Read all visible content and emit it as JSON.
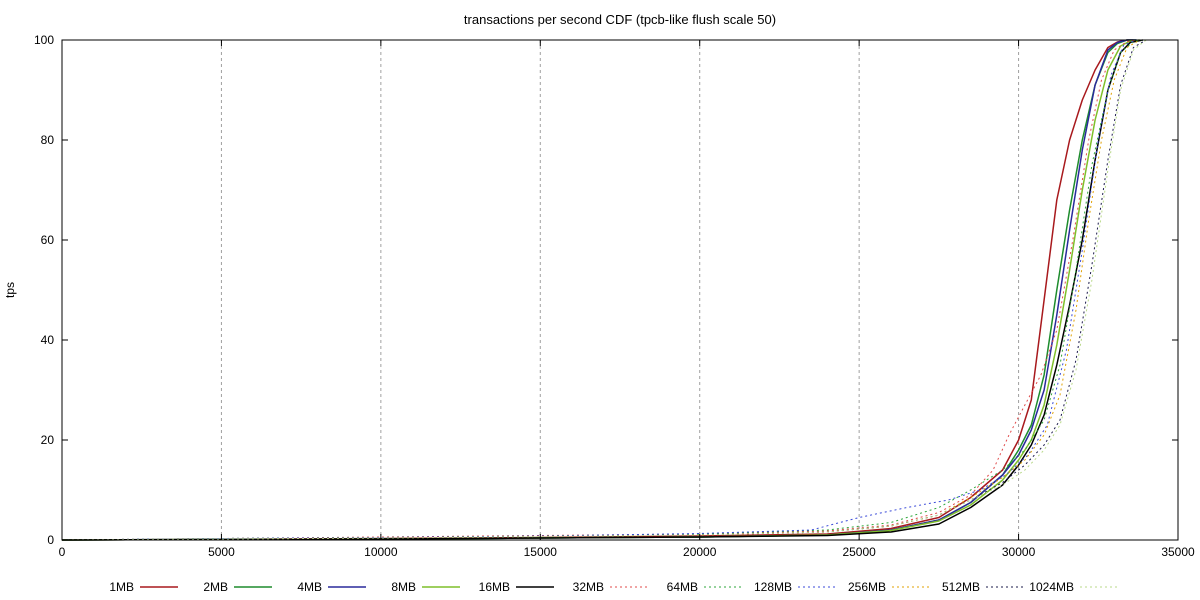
{
  "chart_data": {
    "type": "line",
    "title": "transactions per second CDF (tpcb-like flush scale 50)",
    "xlabel": "",
    "ylabel": "tps",
    "xlim": [
      0,
      35000
    ],
    "ylim": [
      0,
      100
    ],
    "xticks": [
      0,
      5000,
      10000,
      15000,
      20000,
      25000,
      30000,
      35000
    ],
    "yticks": [
      0,
      20,
      40,
      60,
      80,
      100
    ],
    "grid": "vertical dashed gridlines",
    "legend_position": "bottom",
    "series": [
      {
        "name": "1MB",
        "color": "#a8191d",
        "style": "solid",
        "x": [
          0,
          5000,
          10000,
          15000,
          20000,
          24000,
          26000,
          27500,
          28500,
          29500,
          30000,
          30400,
          30800,
          31200,
          31600,
          32000,
          32400,
          32800,
          33100,
          33400,
          33600
        ],
        "y": [
          0,
          0.1,
          0.3,
          0.5,
          0.8,
          1.2,
          2.3,
          4.5,
          8.5,
          14,
          20,
          28,
          48,
          68,
          80,
          88,
          94,
          98.5,
          99.6,
          100,
          100
        ]
      },
      {
        "name": "2MB",
        "color": "#1e8c2d",
        "style": "solid",
        "x": [
          0,
          5000,
          10000,
          15000,
          20000,
          24000,
          26000,
          27500,
          28500,
          29500,
          30000,
          30400,
          30800,
          31200,
          31600,
          32000,
          32400,
          32800,
          33100,
          33400,
          33700
        ],
        "y": [
          0,
          0.1,
          0.2,
          0.4,
          0.6,
          1.0,
          2.0,
          4.0,
          7.5,
          13,
          18,
          23,
          33,
          50,
          66,
          80,
          91,
          97.5,
          99.3,
          100,
          100
        ]
      },
      {
        "name": "4MB",
        "color": "#2a2a9c",
        "style": "solid",
        "x": [
          0,
          5000,
          10000,
          15000,
          20000,
          24000,
          26000,
          27500,
          28500,
          29500,
          30000,
          30400,
          30800,
          31200,
          31600,
          32000,
          32400,
          32800,
          33100,
          33400,
          33700
        ],
        "y": [
          0,
          0.1,
          0.2,
          0.4,
          0.6,
          1.0,
          2.0,
          4.0,
          7.5,
          13,
          17,
          22,
          30,
          45,
          62,
          78,
          91,
          98,
          99.5,
          100,
          100
        ]
      },
      {
        "name": "8MB",
        "color": "#7fbf2a",
        "style": "solid",
        "x": [
          0,
          5000,
          10000,
          15000,
          20000,
          24000,
          26000,
          27500,
          28500,
          29500,
          30000,
          30400,
          30800,
          31200,
          31600,
          32000,
          32400,
          32800,
          33200,
          33500,
          33800
        ],
        "y": [
          0,
          0.1,
          0.2,
          0.4,
          0.6,
          1.0,
          1.9,
          3.8,
          7.0,
          12,
          16,
          20,
          27,
          39,
          54,
          70,
          84,
          94,
          98.8,
          99.8,
          100
        ]
      },
      {
        "name": "16MB",
        "color": "#000000",
        "style": "solid",
        "x": [
          0,
          5000,
          10000,
          15000,
          20000,
          24000,
          26000,
          27500,
          28500,
          29500,
          30000,
          30400,
          30800,
          31200,
          31600,
          32000,
          32400,
          32800,
          33200,
          33500,
          33900
        ],
        "y": [
          0,
          0.1,
          0.2,
          0.4,
          0.6,
          0.9,
          1.6,
          3.2,
          6.5,
          11,
          15,
          19,
          25,
          35,
          47,
          60,
          76,
          90,
          97.5,
          99.5,
          100
        ]
      },
      {
        "name": "32MB",
        "color": "#e04a4a",
        "style": "dotted",
        "x": [
          0,
          5000,
          10000,
          15000,
          20000,
          24000,
          26000,
          27500,
          28500,
          29200,
          29700,
          30200,
          30700,
          31200,
          31700,
          32200,
          32600,
          33000,
          33400,
          33800
        ],
        "y": [
          0,
          0.3,
          0.6,
          0.9,
          1.2,
          1.8,
          3.0,
          5.5,
          9.0,
          14,
          21,
          27,
          33,
          42,
          60,
          80,
          92,
          98,
          99.7,
          100
        ]
      },
      {
        "name": "64MB",
        "color": "#2ea63a",
        "style": "dotted",
        "x": [
          0,
          5000,
          10000,
          15000,
          20000,
          24000,
          26000,
          27500,
          28500,
          29500,
          30200,
          30800,
          31300,
          31800,
          32300,
          32800,
          33200,
          33600,
          33900
        ],
        "y": [
          0,
          0.3,
          0.5,
          0.8,
          1.2,
          2.0,
          3.5,
          6.5,
          10,
          14,
          18,
          24,
          35,
          54,
          75,
          90,
          97.5,
          99.7,
          100
        ]
      },
      {
        "name": "128MB",
        "color": "#3a4ad8",
        "style": "dotted",
        "x": [
          0,
          5000,
          10000,
          15000,
          20000,
          23500,
          25000,
          26500,
          27800,
          28800,
          29600,
          30300,
          30900,
          31500,
          32000,
          32500,
          32900,
          33300,
          33700
        ],
        "y": [
          0,
          0.3,
          0.5,
          0.8,
          1.3,
          2.0,
          4.5,
          6.5,
          8.0,
          10,
          13,
          17,
          23,
          38,
          58,
          80,
          93,
          99,
          100
        ]
      },
      {
        "name": "256MB",
        "color": "#e0a000",
        "style": "dotted",
        "x": [
          0,
          5000,
          10000,
          15000,
          20000,
          24000,
          26000,
          27500,
          28500,
          29500,
          30200,
          30800,
          31300,
          31800,
          32200,
          32600,
          33000,
          33400,
          33800
        ],
        "y": [
          0,
          0.2,
          0.4,
          0.7,
          1.0,
          1.6,
          2.8,
          5.0,
          8.5,
          12.5,
          16,
          21,
          29,
          46,
          64,
          80,
          92,
          98.5,
          100
        ]
      },
      {
        "name": "512MB",
        "color": "#1a1a4a",
        "style": "dotted",
        "x": [
          0,
          5000,
          10000,
          15000,
          20000,
          24000,
          26000,
          27500,
          28500,
          29500,
          30200,
          30800,
          31300,
          31800,
          32300,
          32800,
          33200,
          33600,
          34000
        ],
        "y": [
          0,
          0.2,
          0.4,
          0.7,
          1.0,
          1.6,
          2.8,
          5.0,
          8.0,
          11.5,
          15,
          19,
          24,
          36,
          55,
          76,
          91,
          98.5,
          100
        ]
      },
      {
        "name": "1024MB",
        "color": "#b9d98a",
        "style": "dotted",
        "x": [
          0,
          5000,
          10000,
          15000,
          20000,
          24000,
          26000,
          27500,
          28500,
          29500,
          30200,
          30800,
          31300,
          31800,
          32300,
          32800,
          33200,
          33600,
          34000
        ],
        "y": [
          0,
          0.2,
          0.4,
          0.7,
          1.0,
          1.6,
          2.8,
          5.0,
          8.0,
          11,
          14,
          18,
          23,
          34,
          52,
          74,
          90,
          98,
          100
        ]
      }
    ]
  }
}
